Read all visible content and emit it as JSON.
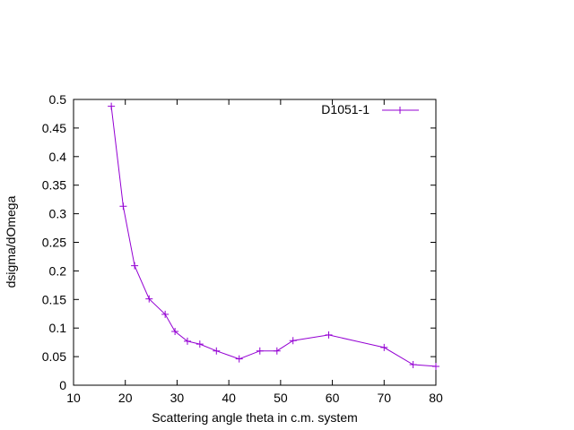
{
  "chart_data": {
    "type": "line",
    "title": "",
    "xlabel": "Scattering angle theta in c.m. system",
    "ylabel": "dsigma/dOmega",
    "xlim": [
      10,
      80
    ],
    "ylim": [
      0,
      0.5
    ],
    "xticks": [
      10,
      20,
      30,
      40,
      50,
      60,
      70,
      80
    ],
    "yticks": [
      0,
      0.05,
      0.1,
      0.15,
      0.2,
      0.25,
      0.3,
      0.35,
      0.4,
      0.45,
      0.5
    ],
    "xtick_labels": [
      "10",
      "20",
      "30",
      "40",
      "50",
      "60",
      "70",
      "80"
    ],
    "ytick_labels": [
      "0",
      "0.05",
      "0.1",
      "0.15",
      "0.2",
      "0.25",
      "0.3",
      "0.35",
      "0.4",
      "0.45",
      "0.5"
    ],
    "grid": false,
    "legend_position": "top-right",
    "series": [
      {
        "name": "D1051-1",
        "color": "#9400d3",
        "marker": "plus",
        "x": [
          17.3,
          19.6,
          21.8,
          24.6,
          27.7,
          29.6,
          32.0,
          34.4,
          37.6,
          42.0,
          46.0,
          49.3,
          52.4,
          59.3,
          70.0,
          75.6,
          80.0
        ],
        "y": [
          0.488,
          0.313,
          0.209,
          0.151,
          0.124,
          0.094,
          0.077,
          0.072,
          0.06,
          0.046,
          0.06,
          0.06,
          0.078,
          0.088,
          0.066,
          0.036,
          0.033
        ]
      }
    ]
  }
}
